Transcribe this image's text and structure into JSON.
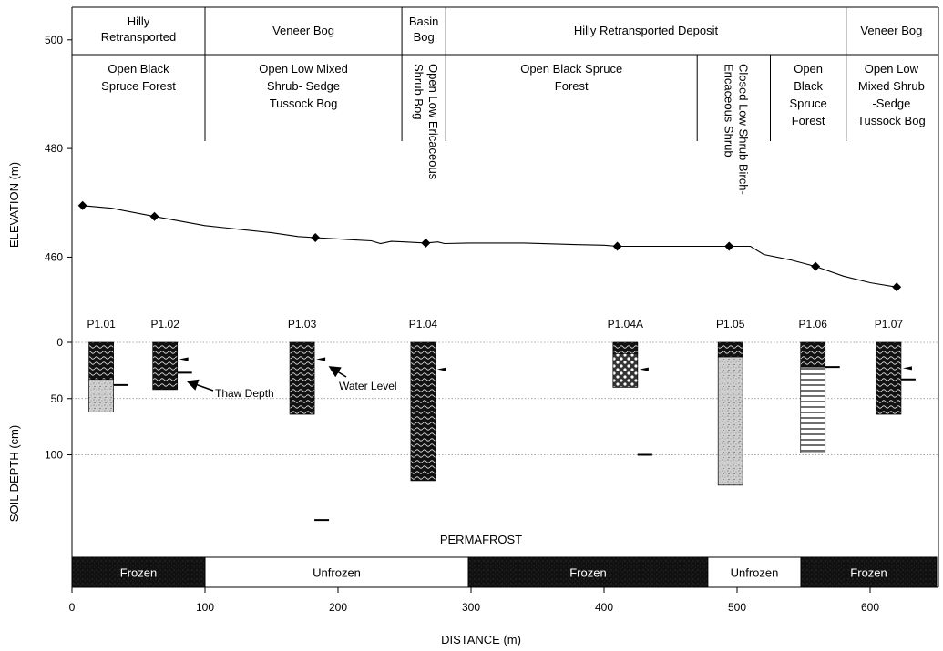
{
  "chart_data": {
    "type": "line",
    "xlabel": "DISTANCE (m)",
    "ylabel_top": "ELEVATION (m)",
    "ylabel_bottom": "SOIL DEPTH (cm)",
    "xlim": [
      0,
      650
    ],
    "x_ticks": [
      0,
      100,
      200,
      300,
      400,
      500,
      600
    ],
    "elevation_ylim": [
      447,
      506
    ],
    "elevation_ticks": [
      460,
      480,
      500
    ],
    "depth_ticks": [
      0,
      50,
      100
    ],
    "depth_ylim": [
      0,
      165
    ],
    "depth_grid": [
      0,
      50,
      100
    ],
    "elevation_profile": [
      [
        8,
        469.5
      ],
      [
        30,
        469
      ],
      [
        62,
        467.5
      ],
      [
        100,
        465.8
      ],
      [
        150,
        464.5
      ],
      [
        170,
        463.8
      ],
      [
        183,
        463.6
      ],
      [
        210,
        463.2
      ],
      [
        225,
        463.0
      ],
      [
        232,
        462.5
      ],
      [
        240,
        462.9
      ],
      [
        250,
        462.8
      ],
      [
        266,
        462.6
      ],
      [
        275,
        462.8
      ],
      [
        280,
        462.5
      ],
      [
        300,
        462.6
      ],
      [
        340,
        462.6
      ],
      [
        380,
        462.3
      ],
      [
        400,
        462.2
      ],
      [
        410,
        462.0
      ],
      [
        440,
        462.0
      ],
      [
        470,
        462.0
      ],
      [
        500,
        462.0
      ],
      [
        510,
        462.0
      ],
      [
        520,
        460.5
      ],
      [
        540,
        459.5
      ],
      [
        559,
        458.3
      ],
      [
        580,
        456.5
      ],
      [
        600,
        455.3
      ],
      [
        620,
        454.5
      ]
    ],
    "elevation_points": [
      {
        "x": 8,
        "y": 469.5
      },
      {
        "x": 62,
        "y": 467.5
      },
      {
        "x": 183,
        "y": 463.6
      },
      {
        "x": 266,
        "y": 462.6
      },
      {
        "x": 410,
        "y": 462.0
      },
      {
        "x": 494,
        "y": 462.0
      },
      {
        "x": 559,
        "y": 458.3
      },
      {
        "x": 620,
        "y": 454.5
      }
    ],
    "terrain_units": [
      {
        "label": [
          "Hilly",
          "Retransported"
        ],
        "x0": 0,
        "x1": 100
      },
      {
        "label": [
          "Veneer Bog"
        ],
        "x0": 100,
        "x1": 248
      },
      {
        "label": [
          "Basin",
          "Bog"
        ],
        "x0": 248,
        "x1": 281
      },
      {
        "label": [
          "Hilly Retransported Deposit"
        ],
        "x0": 281,
        "x1": 582
      },
      {
        "label": [
          "Veneer Bog"
        ],
        "x0": 582,
        "x1": 650
      }
    ],
    "vegetation_units": [
      {
        "label": [
          "Open Black",
          "Spruce Forest"
        ],
        "x0": 0,
        "x1": 100,
        "orientation": "horizontal"
      },
      {
        "label": [
          "Open Low Mixed",
          "Shrub- Sedge",
          "Tussock Bog"
        ],
        "x0": 100,
        "x1": 248,
        "orientation": "horizontal"
      },
      {
        "label": [
          "Open Low Ericaceous",
          "Shrub Bog"
        ],
        "x0": 248,
        "x1": 281,
        "orientation": "vertical"
      },
      {
        "label": [
          "Open Black Spruce",
          "Forest"
        ],
        "x0": 281,
        "x1": 470,
        "orientation": "horizontal"
      },
      {
        "label": [
          "Closed Low Shrub Birch-",
          "Ericaceous Shrub"
        ],
        "x0": 470,
        "x1": 525,
        "orientation": "vertical"
      },
      {
        "label": [
          "Open",
          "Black",
          "Spruce",
          "Forest"
        ],
        "x0": 525,
        "x1": 582,
        "orientation": "horizontal"
      },
      {
        "label": [
          "Open Low",
          "Mixed Shrub",
          "-Sedge",
          "Tussock Bog"
        ],
        "x0": 582,
        "x1": 650,
        "orientation": "horizontal"
      }
    ],
    "cores": [
      {
        "label": "P1.01",
        "x": 22,
        "segments": [
          {
            "from": 0,
            "to": 33,
            "pattern": "wave"
          },
          {
            "from": 33,
            "to": 62,
            "pattern": "stipple"
          }
        ],
        "water_level": null,
        "thaw_depth": 38
      },
      {
        "label": "P1.02",
        "x": 70,
        "segments": [
          {
            "from": 0,
            "to": 42,
            "pattern": "wave"
          }
        ],
        "water_level": 15,
        "thaw_depth": 27
      },
      {
        "label": "P1.03",
        "x": 173,
        "segments": [
          {
            "from": 0,
            "to": 64,
            "pattern": "wave"
          }
        ],
        "water_level": 15,
        "thaw_depth": 158
      },
      {
        "label": "P1.04",
        "x": 264,
        "segments": [
          {
            "from": 0,
            "to": 123,
            "pattern": "wave"
          }
        ],
        "water_level": 24,
        "thaw_depth": null
      },
      {
        "label": "P1.04A",
        "x": 416,
        "segments": [
          {
            "from": 0,
            "to": 10,
            "pattern": "wave"
          },
          {
            "from": 10,
            "to": 40,
            "pattern": "dots"
          }
        ],
        "water_level": 24,
        "thaw_depth": 100
      },
      {
        "label": "P1.05",
        "x": 495,
        "segments": [
          {
            "from": 0,
            "to": 13,
            "pattern": "wave"
          },
          {
            "from": 13,
            "to": 127,
            "pattern": "stipple"
          }
        ],
        "water_level": null,
        "thaw_depth": null
      },
      {
        "label": "P1.06",
        "x": 557,
        "segments": [
          {
            "from": 0,
            "to": 22,
            "pattern": "wave"
          },
          {
            "from": 22,
            "to": 98,
            "pattern": "hlines"
          }
        ],
        "water_level": null,
        "thaw_depth": 22
      },
      {
        "label": "P1.07",
        "x": 614,
        "segments": [
          {
            "from": 0,
            "to": 64,
            "pattern": "wave"
          }
        ],
        "water_level": 23,
        "thaw_depth": 33
      }
    ],
    "annotations": {
      "thaw_depth": "Thaw Depth",
      "water_level": "Water Level",
      "permafrost": "PERMAFROST"
    },
    "frost_status": [
      {
        "label": "Frozen",
        "x0": 0,
        "x1": 100,
        "state": "frozen"
      },
      {
        "label": "Unfrozen",
        "x0": 100,
        "x1": 298,
        "state": "unfrozen"
      },
      {
        "label": "Frozen",
        "x0": 298,
        "x1": 478,
        "state": "frozen"
      },
      {
        "label": "Unfrozen",
        "x0": 478,
        "x1": 548,
        "state": "unfrozen"
      },
      {
        "label": "Frozen",
        "x0": 548,
        "x1": 650,
        "state": "frozen"
      }
    ]
  }
}
